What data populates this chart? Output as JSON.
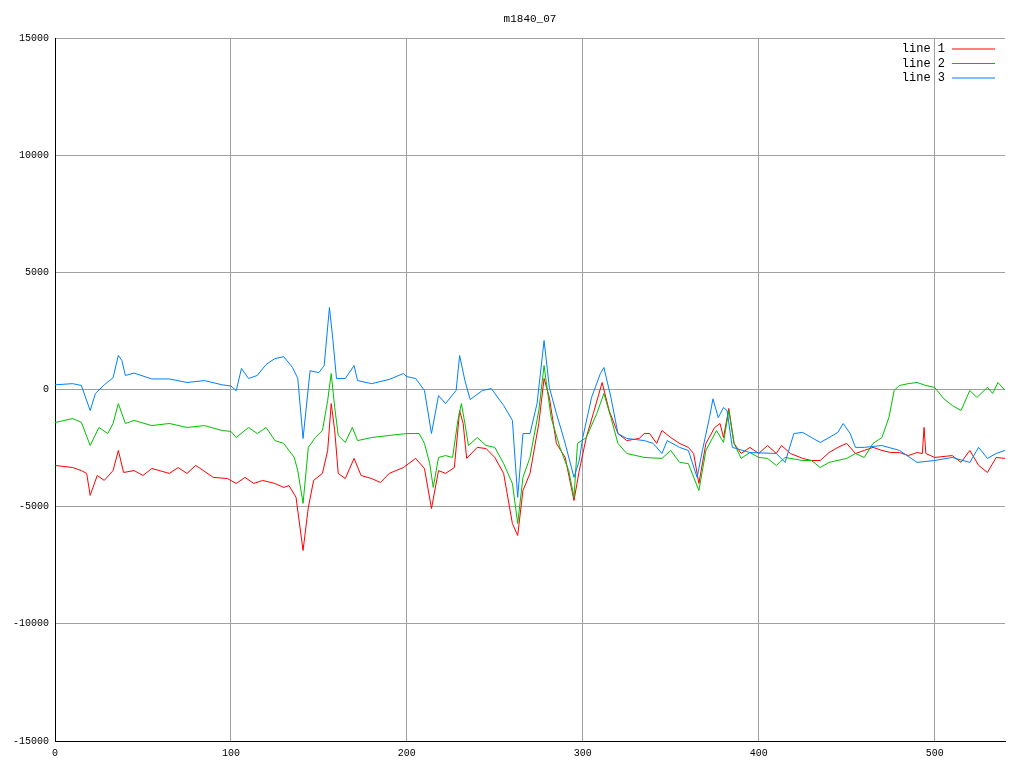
{
  "chart_data": {
    "type": "line",
    "title": "m1840_07",
    "xlim": [
      0,
      540
    ],
    "xticks": [
      0,
      100,
      200,
      300,
      400,
      500
    ],
    "ylim": [
      -15000,
      15000
    ],
    "yticks": [
      -15000,
      -10000,
      -5000,
      0,
      5000,
      10000,
      15000
    ],
    "grid": true,
    "legend": "top right",
    "marker": "none",
    "line_style": "solid",
    "series": [
      {
        "name": "line 1",
        "color": "#ff0000",
        "x": [
          0,
          10,
          15,
          18,
          20,
          24,
          28,
          33,
          36,
          39,
          45,
          50,
          55,
          65,
          70,
          75,
          80,
          90,
          98,
          103,
          108,
          113,
          118,
          125,
          130,
          133,
          137,
          141,
          144,
          147,
          152,
          155,
          157,
          159,
          161,
          165,
          170,
          174,
          180,
          185,
          190,
          198,
          205,
          210,
          214,
          218,
          222,
          227,
          230,
          232,
          234,
          240,
          245,
          250,
          255,
          260,
          263,
          266,
          270,
          275,
          278,
          281,
          285,
          290,
          295,
          298,
          302,
          306,
          311,
          315,
          320,
          325,
          332,
          335,
          338,
          342,
          345,
          350,
          355,
          360,
          363,
          366,
          370,
          375,
          378,
          380,
          383,
          386,
          390,
          395,
          400,
          405,
          410,
          413,
          418,
          425,
          430,
          435,
          440,
          445,
          450,
          455,
          460,
          465,
          470,
          475,
          480,
          485,
          490,
          493,
          494,
          495,
          500,
          510,
          515,
          520,
          525,
          530,
          535,
          540
        ],
        "values": [
          -3240,
          -3330,
          -3460,
          -3580,
          -4520,
          -3670,
          -3880,
          -3460,
          -2600,
          -3540,
          -3460,
          -3670,
          -3370,
          -3580,
          -3330,
          -3580,
          -3240,
          -3750,
          -3800,
          -4010,
          -3750,
          -4010,
          -3880,
          -4010,
          -4180,
          -4100,
          -4600,
          -6870,
          -5030,
          -3880,
          -3580,
          -2600,
          -600,
          -1750,
          -3580,
          -3800,
          -2940,
          -3670,
          -3800,
          -3970,
          -3580,
          -3330,
          -2940,
          -3370,
          -5080,
          -3460,
          -3580,
          -3330,
          -900,
          -1450,
          -2940,
          -2470,
          -2520,
          -2900,
          -3580,
          -5720,
          -6230,
          -4310,
          -3580,
          -1450,
          470,
          -340,
          -2300,
          -2900,
          -4740,
          -3460,
          -2050,
          -1020,
          300,
          -900,
          -1880,
          -2180,
          -2090,
          -1880,
          -1880,
          -2300,
          -1750,
          -2050,
          -2300,
          -2470,
          -2730,
          -4010,
          -2300,
          -1620,
          -1450,
          -2050,
          -810,
          -2300,
          -2730,
          -2470,
          -2730,
          -2390,
          -2730,
          -2390,
          -2730,
          -2940,
          -3030,
          -3030,
          -2690,
          -2470,
          -2300,
          -2730,
          -2600,
          -2470,
          -2600,
          -2690,
          -2690,
          -2820,
          -2690,
          -2730,
          -1620,
          -2730,
          -2900,
          -2820,
          -3110,
          -2600,
          -3240,
          -3540,
          -2900,
          -2940
        ]
      },
      {
        "name": "line 2",
        "color": "#00c000",
        "x": [
          0,
          10,
          15,
          20,
          25,
          30,
          33,
          36,
          40,
          45,
          55,
          65,
          75,
          85,
          95,
          100,
          103,
          110,
          115,
          120,
          125,
          130,
          133,
          136,
          138,
          141,
          144,
          148,
          152,
          155,
          157,
          159,
          161,
          165,
          169,
          172,
          180,
          190,
          200,
          207,
          210,
          213,
          215,
          218,
          222,
          226,
          229,
          231,
          233,
          235,
          240,
          245,
          250,
          255,
          260,
          263,
          266,
          270,
          275,
          278,
          282,
          287,
          292,
          295,
          297,
          302,
          308,
          312,
          316,
          320,
          325,
          335,
          345,
          350,
          355,
          360,
          366,
          370,
          376,
          380,
          383,
          386,
          390,
          395,
          400,
          405,
          410,
          415,
          425,
          430,
          435,
          440,
          450,
          455,
          460,
          465,
          470,
          474,
          477,
          480,
          485,
          490,
          495,
          500,
          505,
          510,
          515,
          520,
          524,
          530,
          533,
          536,
          540
        ],
        "values": [
          -1410,
          -1240,
          -1400,
          -2390,
          -1620,
          -1880,
          -1450,
          -600,
          -1450,
          -1320,
          -1540,
          -1450,
          -1620,
          -1540,
          -1750,
          -1790,
          -2050,
          -1620,
          -1880,
          -1620,
          -2180,
          -2300,
          -2600,
          -2900,
          -3460,
          -4860,
          -2470,
          -2050,
          -1750,
          -470,
          680,
          -770,
          -1960,
          -2260,
          -1620,
          -2180,
          -2050,
          -1960,
          -1880,
          -1880,
          -2300,
          -3160,
          -4180,
          -2900,
          -2820,
          -2900,
          -1320,
          -600,
          -1450,
          -2390,
          -2050,
          -2390,
          -2470,
          -3160,
          -4010,
          -5720,
          -3750,
          -2900,
          -900,
          1020,
          -1200,
          -2470,
          -3460,
          -4600,
          -2300,
          -2050,
          -1020,
          -170,
          -1200,
          -2300,
          -2730,
          -2900,
          -2940,
          -2600,
          -3110,
          -3160,
          -4310,
          -2600,
          -1750,
          -2260,
          -900,
          -2300,
          -2940,
          -2690,
          -2900,
          -2940,
          -3240,
          -2900,
          -3030,
          -3030,
          -3330,
          -3110,
          -2940,
          -2730,
          -2900,
          -2300,
          -2050,
          -1200,
          -40,
          170,
          250,
          300,
          170,
          90,
          -380,
          -680,
          -900,
          -40,
          -340,
          90,
          -170,
          300,
          -40
        ]
      },
      {
        "name": "line 3",
        "color": "#0080ff",
        "x": [
          0,
          10,
          15,
          20,
          23,
          28,
          33,
          36,
          38,
          40,
          45,
          55,
          65,
          75,
          85,
          95,
          100,
          103,
          106,
          110,
          115,
          120,
          125,
          130,
          135,
          138,
          141,
          145,
          150,
          153,
          156,
          158,
          160,
          165,
          170,
          172,
          180,
          190,
          198,
          200,
          205,
          210,
          214,
          218,
          222,
          228,
          230,
          233,
          236,
          243,
          248,
          255,
          260,
          263,
          266,
          270,
          274,
          278,
          281,
          285,
          290,
          295,
          298,
          300,
          305,
          310,
          312,
          316,
          320,
          325,
          335,
          340,
          345,
          348,
          355,
          360,
          365,
          368,
          372,
          374,
          377,
          380,
          382,
          385,
          395,
          410,
          415,
          420,
          425,
          430,
          435,
          440,
          445,
          448,
          452,
          455,
          460,
          470,
          480,
          490,
          500,
          510,
          520,
          525,
          530,
          535,
          540
        ],
        "values": [
          200,
          250,
          170,
          -900,
          -170,
          200,
          500,
          1450,
          1240,
          600,
          700,
          450,
          450,
          300,
          380,
          200,
          150,
          -50,
          900,
          470,
          600,
          1070,
          1320,
          1400,
          940,
          470,
          -2090,
          800,
          720,
          1020,
          3500,
          2090,
          470,
          470,
          1020,
          380,
          250,
          430,
          680,
          550,
          470,
          -40,
          -1880,
          -260,
          -600,
          -40,
          1450,
          380,
          -430,
          -40,
          40,
          -680,
          -1320,
          -4600,
          -1880,
          -1880,
          -600,
          2090,
          90,
          -1020,
          -2300,
          -3750,
          -3030,
          -2050,
          -340,
          680,
          940,
          -340,
          -1880,
          -2090,
          -2180,
          -2300,
          -2730,
          -2180,
          -2470,
          -2600,
          -3750,
          -2600,
          -1200,
          -400,
          -1200,
          -770,
          -900,
          -2470,
          -2690,
          -2730,
          -3110,
          -1880,
          -1830,
          -2050,
          -2260,
          -2050,
          -1830,
          -1450,
          -1880,
          -2470,
          -2470,
          -2390,
          -2600,
          -3110,
          -3030,
          -2900,
          -3110,
          -2470,
          -2940,
          -2730,
          -2600
        ]
      }
    ]
  }
}
